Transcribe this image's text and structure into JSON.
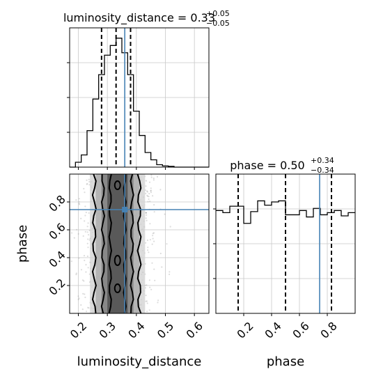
{
  "chart_data": {
    "type": "corner",
    "parameters": [
      "luminosity_distance",
      "phase"
    ],
    "truth": {
      "luminosity_distance": 0.36,
      "phase": 0.745
    },
    "panels": [
      {
        "id": "hist-luminosity_distance",
        "type": "histogram",
        "title_main": "luminosity_distance = 0.33",
        "title_sup": "+0.05",
        "title_sub": "−0.05",
        "xlim": [
          0.17,
          0.65
        ],
        "bin_edges": [
          0.17,
          0.19,
          0.21,
          0.23,
          0.25,
          0.27,
          0.29,
          0.31,
          0.33,
          0.35,
          0.37,
          0.39,
          0.41,
          0.43,
          0.45,
          0.47,
          0.49,
          0.51,
          0.53,
          0.55,
          0.57,
          0.59,
          0.61,
          0.63,
          0.65
        ],
        "counts": [
          0,
          2,
          5,
          15,
          28,
          38,
          46,
          50,
          53,
          47,
          38,
          23,
          13,
          6,
          3,
          1,
          0.5,
          0.3,
          0,
          0,
          0,
          0,
          0,
          0
        ],
        "quantiles": [
          0.28,
          0.33,
          0.38
        ],
        "truth": 0.36
      },
      {
        "id": "hist-phase",
        "type": "histogram",
        "title_main": "phase = 0.50",
        "title_sup": "+0.34",
        "title_sub": "−0.34",
        "xlim": [
          0.0,
          1.0
        ],
        "bin_edges": [
          0.0,
          0.05,
          0.1,
          0.15,
          0.2,
          0.25,
          0.3,
          0.35,
          0.4,
          0.45,
          0.5,
          0.55,
          0.6,
          0.65,
          0.7,
          0.75,
          0.8,
          0.85,
          0.9,
          0.95,
          1.0
        ],
        "counts": [
          96,
          94,
          100,
          100,
          84,
          95,
          105,
          101,
          104,
          105,
          92,
          92,
          96,
          90,
          98,
          92,
          94,
          96,
          91,
          94
        ],
        "ylim": [
          0,
          130
        ],
        "quantiles": [
          0.16,
          0.5,
          0.83
        ],
        "truth": 0.745
      },
      {
        "id": "2d-phase-vs-luminosity_distance",
        "type": "2d-density",
        "xlim": [
          0.17,
          0.65
        ],
        "ylim": [
          0.0,
          1.0
        ],
        "xlabel": "luminosity_distance",
        "ylabel": "phase",
        "truth": [
          0.36,
          0.745
        ]
      }
    ],
    "x_ticks_luminosity_distance": [
      "0.2",
      "0.3",
      "0.4",
      "0.5",
      "0.6"
    ],
    "x_tick_values_luminosity_distance": [
      0.2,
      0.3,
      0.4,
      0.5,
      0.6
    ],
    "x_ticks_phase": [
      "0.2",
      "0.4",
      "0.6",
      "0.8"
    ],
    "x_tick_values_phase": [
      0.2,
      0.4,
      0.6,
      0.8
    ],
    "y_ticks_phase": [
      "0.2",
      "0.4",
      "0.6",
      "0.8"
    ],
    "y_tick_values_phase": [
      0.2,
      0.4,
      0.6,
      0.8
    ],
    "grid": true,
    "colors": {
      "hist": "#000000",
      "quantile": "#000000",
      "truth": "#4682b4",
      "points": "#9e9e9e",
      "grid": "#c8c8c8"
    }
  }
}
